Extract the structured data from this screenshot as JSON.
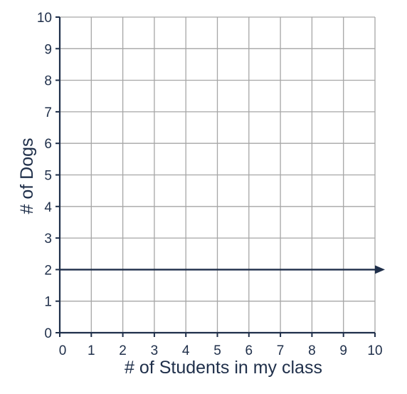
{
  "chart_data": {
    "type": "line",
    "title": "",
    "xlabel": "# of Students in my class",
    "ylabel": "# of Dogs",
    "xlim": [
      0,
      10
    ],
    "ylim": [
      0,
      10
    ],
    "x_ticks": [
      0,
      1,
      2,
      3,
      4,
      5,
      6,
      7,
      8,
      9,
      10
    ],
    "y_ticks": [
      0,
      1,
      2,
      3,
      4,
      5,
      6,
      7,
      8,
      9,
      10
    ],
    "grid": true,
    "series": [
      {
        "x": [
          0,
          10
        ],
        "y": [
          2,
          2
        ],
        "arrow_end": true
      }
    ],
    "colors": {
      "axis": "#1f2f4a",
      "grid": "#a6a6a6",
      "line": "#1f2f4a"
    }
  }
}
